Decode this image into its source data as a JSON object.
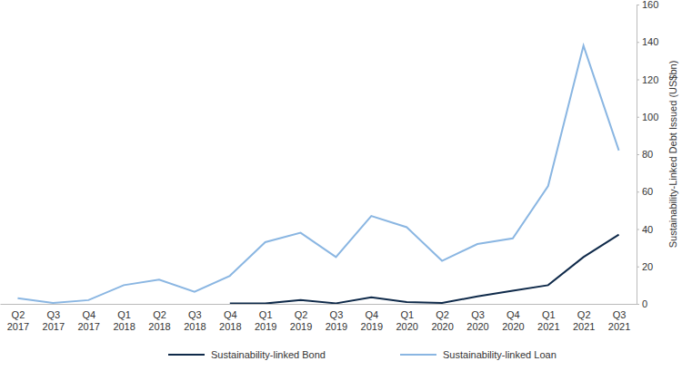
{
  "chart_data": {
    "type": "line",
    "y_label": "Sustainability-Linked Debt Issued (US$bn)",
    "categories": [
      "Q2 2017",
      "Q3 2017",
      "Q4 2017",
      "Q1 2018",
      "Q2 2018",
      "Q3 2018",
      "Q4 2018",
      "Q1 2019",
      "Q2 2019",
      "Q3 2019",
      "Q4 2019",
      "Q1 2020",
      "Q2 2020",
      "Q3 2020",
      "Q4 2020",
      "Q1 2021",
      "Q2 2021",
      "Q3 2021"
    ],
    "series": [
      {
        "name": "Sustainability-linked Bond",
        "color": "#0f2a4a",
        "values": [
          null,
          null,
          null,
          null,
          null,
          null,
          0.3,
          0.2,
          2,
          0.3,
          3.5,
          1,
          0.5,
          4,
          7,
          10,
          25,
          37
        ]
      },
      {
        "name": "Sustainability-linked Loan",
        "color": "#8ab6e2",
        "values": [
          3,
          0.5,
          2,
          10,
          13,
          6.5,
          15,
          33,
          38,
          25,
          47,
          41,
          23,
          32,
          35,
          63,
          138,
          82
        ]
      }
    ],
    "ylim": [
      0,
      160
    ],
    "yticks": [
      0,
      20,
      40,
      60,
      80,
      100,
      120,
      140,
      160
    ],
    "grid": false,
    "legend": "bottom"
  }
}
